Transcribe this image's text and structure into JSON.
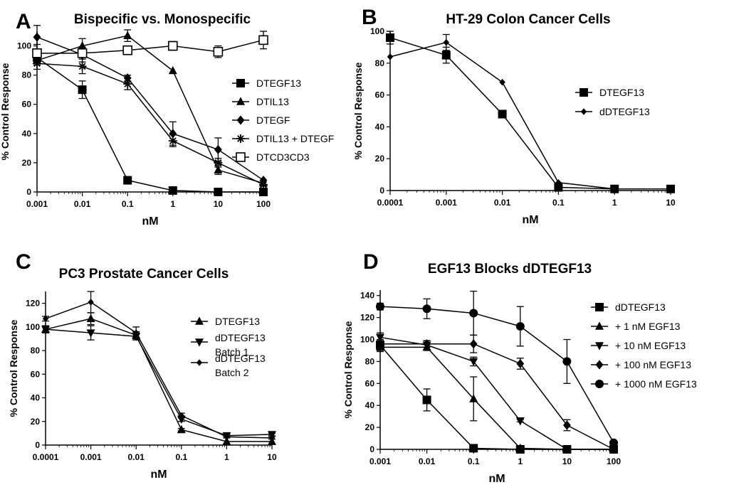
{
  "chart_data": [
    {
      "panel": "A",
      "type": "line",
      "title": "Bispecific vs. Monospecific",
      "xlabel": "nM",
      "ylabel": "% Control Response",
      "xscale": "log",
      "xlim": [
        0.001,
        100
      ],
      "ylim": [
        0,
        110
      ],
      "xticks": [
        "0.001",
        "0.01",
        "0.1",
        "1",
        "10",
        "100"
      ],
      "yticks": [
        "0",
        "20",
        "40",
        "60",
        "80",
        "100"
      ],
      "legend_position": "right",
      "series": [
        {
          "name": "DTEGF13",
          "marker": "square",
          "x": [
            0.001,
            0.01,
            0.1,
            1,
            10,
            100
          ],
          "values": [
            92,
            70,
            8,
            1,
            0,
            0
          ],
          "err": [
            4,
            6,
            1,
            0,
            0,
            0
          ]
        },
        {
          "name": "DTIL13",
          "marker": "triangle",
          "x": [
            0.001,
            0.01,
            0.1,
            1,
            10,
            100
          ],
          "values": [
            90,
            100,
            107,
            83,
            15,
            6
          ],
          "err": [
            3,
            5,
            4,
            0,
            3,
            0
          ]
        },
        {
          "name": "DTEGF",
          "marker": "diamond",
          "x": [
            0.001,
            0.01,
            0.1,
            1,
            10,
            100
          ],
          "values": [
            106,
            94,
            78,
            40,
            29,
            8
          ],
          "err": [
            8,
            5,
            2,
            8,
            8,
            0
          ]
        },
        {
          "name": "DTIL13 + DTEGF",
          "marker": "star",
          "x": [
            0.001,
            0.01,
            0.1,
            1,
            10,
            100
          ],
          "values": [
            88,
            86,
            74,
            35,
            20,
            5
          ],
          "err": [
            4,
            5,
            4,
            4,
            3,
            0
          ]
        },
        {
          "name": "DTCD3CD3",
          "marker": "open-square",
          "x": [
            0.001,
            0.01,
            0.1,
            1,
            10,
            100
          ],
          "values": [
            95,
            95,
            97,
            100,
            96,
            104
          ],
          "err": [
            6,
            4,
            3,
            3,
            4,
            6
          ]
        }
      ]
    },
    {
      "panel": "B",
      "type": "line",
      "title": "HT-29 Colon Cancer Cells",
      "xlabel": "nM",
      "ylabel": "% Control Response",
      "xscale": "log",
      "xlim": [
        0.0001,
        10
      ],
      "ylim": [
        0,
        100
      ],
      "xticks": [
        "0.0001",
        "0.001",
        "0.01",
        "0.1",
        "1",
        "10"
      ],
      "yticks": [
        "0",
        "20",
        "40",
        "60",
        "80",
        "100"
      ],
      "legend_position": "right",
      "series": [
        {
          "name": "DTEGF13",
          "marker": "square",
          "x": [
            0.0001,
            0.001,
            0.01,
            0.1,
            1,
            10
          ],
          "values": [
            96,
            85,
            48,
            2,
            1,
            1
          ],
          "err": [
            4,
            5,
            1,
            1,
            0,
            0
          ]
        },
        {
          "name": "dDTEGF13",
          "marker": "small-diamond",
          "x": [
            0.0001,
            0.001,
            0.01,
            0.1,
            1,
            10
          ],
          "values": [
            84,
            93,
            68,
            5,
            1,
            1
          ],
          "err": [
            0,
            5,
            0,
            0,
            0,
            0
          ]
        }
      ]
    },
    {
      "panel": "C",
      "type": "line",
      "title": "PC3 Prostate Cancer Cells",
      "xlabel": "nM",
      "ylabel": "% Control Response",
      "xscale": "log",
      "xlim": [
        0.0001,
        10
      ],
      "ylim": [
        0,
        130
      ],
      "xticks": [
        "0.0001",
        "0.001",
        "0.01",
        "0.1",
        "1",
        "10"
      ],
      "yticks": [
        "0",
        "20",
        "40",
        "60",
        "80",
        "100",
        "120"
      ],
      "legend_position": "right",
      "series": [
        {
          "name": "DTEGF13",
          "marker": "triangle",
          "x": [
            0.0001,
            0.001,
            0.01,
            0.1,
            1,
            10
          ],
          "values": [
            98,
            107,
            93,
            13,
            3,
            3
          ],
          "err": [
            3,
            5,
            3,
            1,
            0,
            0
          ]
        },
        {
          "name": "dDTEGF13 Batch 1",
          "marker": "triangle-down",
          "x": [
            0.0001,
            0.001,
            0.01,
            0.1,
            1,
            10
          ],
          "values": [
            98,
            95,
            92,
            22,
            8,
            9
          ],
          "err": [
            3,
            6,
            3,
            2,
            1,
            1
          ]
        },
        {
          "name": "dDTEGF13 Batch 2",
          "marker": "small-diamond",
          "x": [
            0.0001,
            0.001,
            0.01,
            0.1,
            1,
            10
          ],
          "values": [
            107,
            121,
            95,
            25,
            7,
            6
          ],
          "err": [
            2,
            9,
            5,
            2,
            1,
            1
          ]
        }
      ]
    },
    {
      "panel": "D",
      "type": "line",
      "title": "EGF13 Blocks dDTEGF13",
      "xlabel": "nM",
      "ylabel": "% Control Response",
      "xscale": "log",
      "xlim": [
        0.001,
        100
      ],
      "ylim": [
        0,
        145
      ],
      "xticks": [
        "0.001",
        "0.01",
        "0.1",
        "1",
        "10",
        "100"
      ],
      "yticks": [
        "0",
        "20",
        "40",
        "60",
        "80",
        "100",
        "120",
        "140"
      ],
      "legend_position": "right",
      "series": [
        {
          "name": "dDTEGF13",
          "marker": "square",
          "x": [
            0.001,
            0.01,
            0.1,
            1,
            10,
            100
          ],
          "values": [
            95,
            45,
            1,
            0,
            0,
            0
          ],
          "err": [
            5,
            10,
            0,
            0,
            0,
            0
          ]
        },
        {
          "name": "+ 1 nM EGF13",
          "marker": "triangle",
          "x": [
            0.001,
            0.01,
            0.1,
            1,
            10,
            100
          ],
          "values": [
            93,
            93,
            46,
            1,
            0,
            0
          ],
          "err": [
            4,
            3,
            20,
            0,
            0,
            0
          ]
        },
        {
          "name": "+ 10 nM EGF13",
          "marker": "triangle-down",
          "x": [
            0.001,
            0.01,
            0.1,
            1,
            10,
            100
          ],
          "values": [
            102,
            95,
            80,
            26,
            0,
            0
          ],
          "err": [
            4,
            4,
            4,
            1,
            0,
            0
          ]
        },
        {
          "name": "+ 100 nM EGF13",
          "marker": "diamond",
          "x": [
            0.001,
            0.01,
            0.1,
            1,
            10,
            100
          ],
          "values": [
            96,
            96,
            96,
            78,
            22,
            0
          ],
          "err": [
            3,
            3,
            8,
            5,
            5,
            0
          ]
        },
        {
          "name": "+ 1000 nM EGF13",
          "marker": "circle",
          "x": [
            0.001,
            0.01,
            0.1,
            1,
            10,
            100
          ],
          "values": [
            130,
            128,
            124,
            112,
            80,
            6
          ],
          "err": [
            3,
            9,
            20,
            18,
            20,
            0
          ]
        }
      ]
    }
  ]
}
